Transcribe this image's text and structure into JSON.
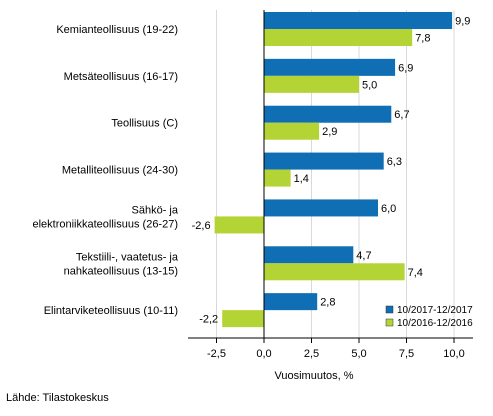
{
  "chart_data": {
    "type": "bar",
    "orientation": "horizontal",
    "title": "",
    "xlabel": "Vuosimuutos, %",
    "ylabel": "",
    "xlim": [
      -4.0,
      11.0
    ],
    "xticks": [
      -2.5,
      0.0,
      2.5,
      5.0,
      7.5,
      10.0
    ],
    "xtick_labels": [
      "-2,5",
      "0,0",
      "2,5",
      "5,0",
      "7,5",
      "10,0"
    ],
    "grid": "vertical lines",
    "legend_position": "bottom-right",
    "categories": [
      [
        "Kemianteollisuus (19-22)"
      ],
      [
        "Metsäteollisuus (16-17)"
      ],
      [
        "Teollisuus (C)"
      ],
      [
        "Metalliteollisuus (24-30)"
      ],
      [
        "Sähkö- ja",
        "elektroniikkateollisuus (26-27)"
      ],
      [
        "Tekstiili-, vaatetus- ja",
        "nahkateollisuus (13-15)"
      ],
      [
        "Elintarviketeollisuus (10-11)"
      ]
    ],
    "series": [
      {
        "name": "10/2017-12/2017",
        "color": "#0f6eb4",
        "values": [
          9.9,
          6.9,
          6.7,
          6.3,
          6.0,
          4.7,
          2.8
        ],
        "labels": [
          "9,9",
          "6,9",
          "6,7",
          "6,3",
          "6,0",
          "4,7",
          "2,8"
        ]
      },
      {
        "name": "10/2016-12/2016",
        "color": "#b4d334",
        "values": [
          7.8,
          5.0,
          2.9,
          1.4,
          -2.6,
          7.4,
          -2.2
        ],
        "labels": [
          "7,8",
          "5,0",
          "2,9",
          "1,4",
          "-2,6",
          "7,4",
          "-2,2"
        ]
      }
    ]
  },
  "source": "Lähde: Tilastokeskus"
}
